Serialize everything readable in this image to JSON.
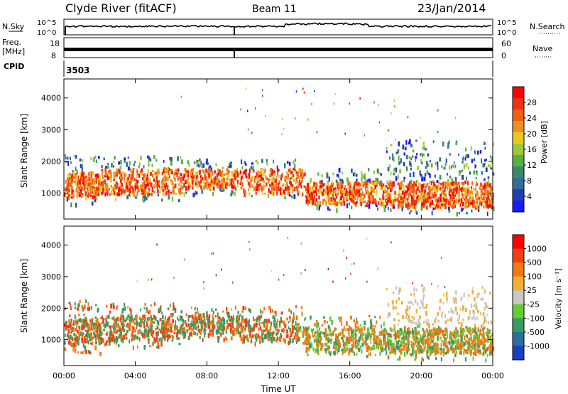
{
  "header": {
    "station": "Clyde River (fitACF)",
    "beam": "Beam 11",
    "date": "23/Jan/2014"
  },
  "top_panels": {
    "nsky_label": "N.Sky",
    "nsky_ticks": [
      "10^5",
      "10^0"
    ],
    "nsearch_label": "N.Search",
    "nsearch_ticks": [
      "10^5",
      "10^0"
    ],
    "freq_label": "Freq.",
    "freq_unit": "[MHz]",
    "freq_ticks": [
      "18",
      "8"
    ],
    "nave_label": "Nave",
    "nave_ticks": [
      "60",
      "0"
    ],
    "cpid_label": "CPID",
    "cpid_value": "3503"
  },
  "chart_data": [
    {
      "type": "heatmap",
      "panel": "power",
      "ylabel": "Slant Range [km]",
      "xlabel": "",
      "x_ticks": [
        "00:00",
        "04:00",
        "08:00",
        "12:00",
        "16:00",
        "20:00",
        "00:00"
      ],
      "x_range_hours": [
        0,
        24
      ],
      "y_ticks": [
        1000,
        2000,
        3000,
        4000
      ],
      "y_range_km": [
        180,
        4600
      ],
      "colorbar": {
        "label": "Power [dB]",
        "ticks": [
          "4",
          "8",
          "12",
          "16",
          "20",
          "24",
          "28"
        ],
        "colors": [
          "#1a1aff",
          "#2040b0",
          "#2f6f9a",
          "#3a8a6a",
          "#58b040",
          "#9cc83a",
          "#e8c820",
          "#f09020",
          "#f06010",
          "#f03010",
          "#ff0000"
        ]
      },
      "scatter_bands": [
        {
          "x": [
            0.0,
            2.0
          ],
          "y": [
            600,
            2300
          ],
          "core": [
            900,
            1700
          ],
          "density": 0.8
        },
        {
          "x": [
            2.0,
            6.5
          ],
          "y": [
            800,
            2200
          ],
          "core": [
            1000,
            1800
          ],
          "density": 0.6
        },
        {
          "x": [
            6.5,
            10.0
          ],
          "y": [
            1000,
            2100
          ],
          "core": [
            1200,
            1800
          ],
          "density": 0.55
        },
        {
          "x": [
            10.0,
            13.5
          ],
          "y": [
            900,
            2100
          ],
          "core": [
            1000,
            1800
          ],
          "density": 0.5
        },
        {
          "x": [
            13.5,
            18.0
          ],
          "y": [
            500,
            1800
          ],
          "core": [
            700,
            1400
          ],
          "density": 0.65
        },
        {
          "x": [
            18.0,
            24.0
          ],
          "y": [
            400,
            2700
          ],
          "core": [
            600,
            1400
          ],
          "density": 0.9
        }
      ]
    },
    {
      "type": "heatmap",
      "panel": "velocity",
      "ylabel": "Slant Range [km]",
      "xlabel": "Time UT",
      "x_ticks": [
        "00:00",
        "04:00",
        "08:00",
        "12:00",
        "16:00",
        "20:00",
        "00:00"
      ],
      "x_range_hours": [
        0,
        24
      ],
      "y_ticks": [
        1000,
        2000,
        3000,
        4000
      ],
      "y_range_km": [
        180,
        4600
      ],
      "colorbar": {
        "label": "Velocity [m s⁻¹]",
        "ticks": [
          "1000",
          "500",
          "100",
          "25",
          "-25",
          "-100",
          "-500",
          "-1000"
        ],
        "colors": [
          "#1a3fbf",
          "#2a6fa0",
          "#3a9a60",
          "#66cc33",
          "#c8c8c8",
          "#f0b030",
          "#f07a10",
          "#f04010",
          "#ff0000"
        ]
      },
      "scatter_bands": [
        {
          "x": [
            0.0,
            2.0
          ],
          "y": [
            600,
            2300
          ],
          "core": [
            900,
            1700
          ],
          "density": 0.8
        },
        {
          "x": [
            2.0,
            6.5
          ],
          "y": [
            800,
            2200
          ],
          "core": [
            1000,
            1800
          ],
          "density": 0.6
        },
        {
          "x": [
            6.5,
            10.0
          ],
          "y": [
            1000,
            2100
          ],
          "core": [
            1200,
            1800
          ],
          "density": 0.55
        },
        {
          "x": [
            10.0,
            13.5
          ],
          "y": [
            900,
            2100
          ],
          "core": [
            1000,
            1800
          ],
          "density": 0.5
        },
        {
          "x": [
            13.5,
            18.0
          ],
          "y": [
            500,
            1800
          ],
          "core": [
            700,
            1400
          ],
          "density": 0.65
        },
        {
          "x": [
            18.0,
            24.0
          ],
          "y": [
            400,
            2700
          ],
          "core": [
            600,
            1400
          ],
          "density": 0.9
        }
      ]
    }
  ]
}
